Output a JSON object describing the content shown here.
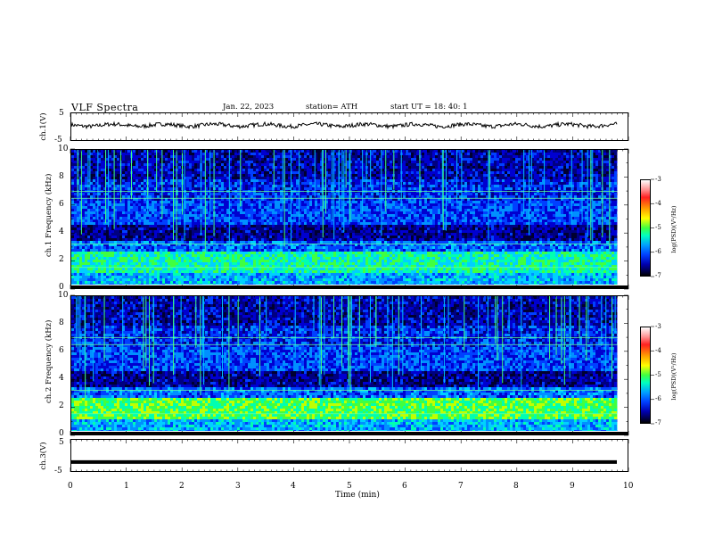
{
  "header": {
    "title": "VLF  Spectra",
    "date": "Jan. 22, 2023",
    "station": "station= ATH",
    "start_ut": "start  UT  =   18: 40: 1"
  },
  "colorbar": {
    "label": "log(PSD)(V²/Hz)",
    "ticks": [
      "-3",
      "-4",
      "-5",
      "-6",
      "-7"
    ],
    "colors": [
      "#ffffff",
      "#ff2020",
      "#ffff00",
      "#40ff40",
      "#00a0ff",
      "#0000b0",
      "#000000"
    ]
  },
  "chart_data": [
    {
      "type": "line",
      "ylabel": "ch.1(V)",
      "yticks": [
        "5",
        "-5"
      ],
      "ylim": [
        -5,
        5
      ],
      "xlim": [
        0,
        10
      ],
      "description_values": {
        "approx_level": 0.5
      }
    },
    {
      "type": "heatmap",
      "ylabel": "ch.1  Frequency (kHz)",
      "yticks": [
        "10",
        "8",
        "6",
        "4",
        "2",
        "0"
      ],
      "ylim": [
        0,
        10
      ],
      "xlim": [
        0,
        10
      ],
      "data_ends_at_min": 9.8
    },
    {
      "type": "heatmap",
      "ylabel": "ch.2  Frequency (kHz)",
      "yticks": [
        "10",
        "8",
        "6",
        "4",
        "2",
        "0"
      ],
      "ylim": [
        0,
        10
      ],
      "xlim": [
        0,
        10
      ],
      "data_ends_at_min": 9.8
    },
    {
      "type": "line",
      "ylabel": "ch.3(V)",
      "yticks": [
        "5",
        "-5"
      ],
      "ylim": [
        -5,
        5
      ],
      "xlim": [
        0,
        10
      ],
      "xlabel": "Time  (min)",
      "xticks": [
        "0",
        "1",
        "2",
        "3",
        "4",
        "5",
        "6",
        "7",
        "8",
        "9",
        "10"
      ],
      "description_values": {
        "approx_level": -2
      }
    }
  ]
}
